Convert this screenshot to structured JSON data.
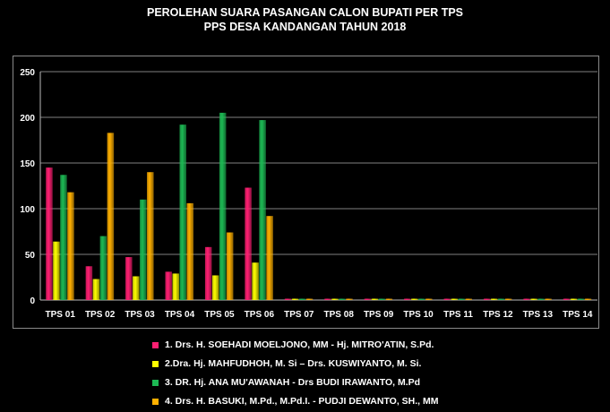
{
  "chart_data": {
    "type": "bar",
    "title": "PEROLEHAN SUARA PASANGAN CALON BUPATI PER TPS",
    "subtitle": "PPS DESA KANDANGAN TAHUN 2018",
    "categories": [
      "TPS 01",
      "TPS 02",
      "TPS 03",
      "TPS 04",
      "TPS 05",
      "TPS 06",
      "TPS 07",
      "TPS 08",
      "TPS 09",
      "TPS 10",
      "TPS 11",
      "TPS 12",
      "TPS 13",
      "TPS 14"
    ],
    "ylim": [
      0,
      250
    ],
    "yticks": [
      "0",
      "50",
      "100",
      "150",
      "200",
      "250"
    ],
    "grid": true,
    "legend_position": "bottom",
    "series": [
      {
        "name": "1.  Drs. H. SOEHADI MOELJONO, MM - Hj. MITRO'ATIN, S.Pd.",
        "color": "#ff1f72",
        "values": [
          145,
          37,
          47,
          31,
          58,
          123,
          0,
          0,
          0,
          0,
          0,
          0,
          0,
          0
        ]
      },
      {
        "name": "2.Dra. Hj. MAHFUDHOH, M. Si – Drs. KUSWIYANTO, M. Si.",
        "color": "#ffff00",
        "values": [
          64,
          23,
          26,
          29,
          27,
          41,
          0,
          0,
          0,
          0,
          0,
          0,
          0,
          0
        ]
      },
      {
        "name": "3.  DR. Hj. ANA MU'AWANAH - Drs BUDI IRAWANTO, M.Pd",
        "color": "#1db954",
        "values": [
          137,
          70,
          110,
          192,
          205,
          197,
          0,
          0,
          0,
          0,
          0,
          0,
          0,
          0
        ]
      },
      {
        "name": "4. Drs. H. BASUKI, M.Pd., M.Pd.I. - PUDJI DEWANTO, SH., MM",
        "color": "#ffb000",
        "values": [
          118,
          183,
          140,
          106,
          74,
          92,
          0,
          0,
          0,
          0,
          0,
          0,
          0,
          0
        ]
      }
    ]
  }
}
